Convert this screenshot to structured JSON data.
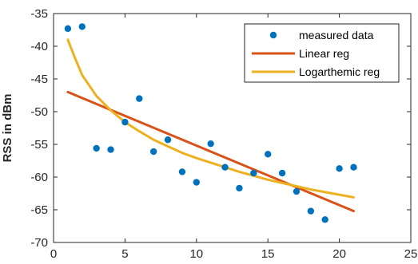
{
  "chart_data": {
    "type": "scatter",
    "ylabel": "RSS in dBm",
    "xlabel": "",
    "xlim": [
      0,
      25
    ],
    "ylim": [
      -70,
      -35
    ],
    "x_ticks": [
      0,
      5,
      10,
      15,
      20,
      25
    ],
    "y_ticks": [
      -35,
      -40,
      -45,
      -50,
      -55,
      -60,
      -65,
      -70
    ],
    "grid": false,
    "legend_position": "top-right",
    "series": [
      {
        "name": "measured data",
        "kind": "scatter",
        "color": "#0072BD",
        "x": [
          1,
          2,
          3,
          4,
          5,
          6,
          7,
          8,
          9,
          10,
          11,
          12,
          13,
          14,
          15,
          16,
          17,
          18,
          19,
          20,
          21
        ],
        "y": [
          -37.3,
          -37.0,
          -55.6,
          -55.8,
          -51.6,
          -48.0,
          -56.1,
          -54.3,
          -59.2,
          -60.8,
          -54.9,
          -58.5,
          -61.7,
          -59.4,
          -56.5,
          -59.4,
          -62.2,
          -65.2,
          -66.5,
          -58.7,
          -58.5
        ]
      },
      {
        "name": "Linear reg",
        "kind": "line",
        "color": "#D95319",
        "x": [
          1,
          21
        ],
        "y": [
          -47.0,
          -65.2
        ]
      },
      {
        "name": "Logarthemic reg",
        "kind": "line",
        "color": "#EDB120",
        "x": [
          1,
          1.5,
          2,
          3,
          4,
          5,
          6,
          7,
          8,
          9,
          10,
          11,
          12,
          13,
          14,
          15,
          16,
          17,
          18,
          19,
          20,
          21
        ],
        "y": [
          -39.0,
          -41.8,
          -44.4,
          -47.6,
          -49.8,
          -51.6,
          -53.0,
          -54.3,
          -55.3,
          -56.3,
          -57.1,
          -57.8,
          -58.5,
          -59.2,
          -59.8,
          -60.4,
          -60.9,
          -61.4,
          -61.9,
          -62.3,
          -62.7,
          -63.1
        ]
      }
    ]
  }
}
